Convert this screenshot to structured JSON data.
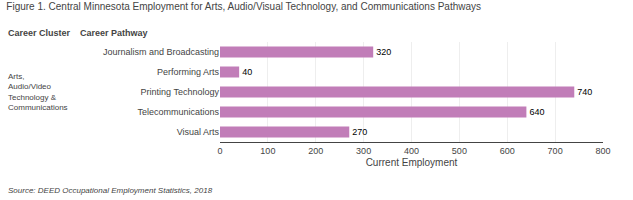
{
  "chart_data": {
    "type": "bar",
    "orientation": "horizontal",
    "title": "Figure 1. Central Minnesota Employment for Arts, Audio/Visual Technology, and Communications Pathways",
    "categories": [
      "Journalism and Broadcasting",
      "Performing Arts",
      "Printing Technology",
      "Telecommunications",
      "Visual Arts"
    ],
    "values": [
      320,
      40,
      740,
      640,
      270
    ],
    "color": "#c17db8",
    "xlabel": "Current Employment",
    "xlim": [
      0,
      800
    ],
    "xticks": [
      0,
      100,
      200,
      300,
      400,
      500,
      600,
      700,
      800
    ],
    "grid": true,
    "data_labels": true,
    "annotations": [
      "Career Cluster",
      "Career Pathway",
      "Arts,\nAudio/Video\nTechnology &\nCommunications",
      "Source: DEED Occupational Employment Statistics, 2018"
    ]
  }
}
